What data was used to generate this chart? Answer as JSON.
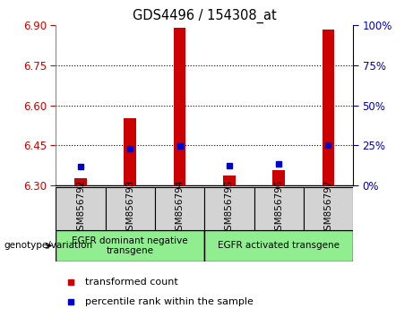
{
  "title": "GDS4496 / 154308_at",
  "samples": [
    "GSM856792",
    "GSM856793",
    "GSM856794",
    "GSM856795",
    "GSM856796",
    "GSM856797"
  ],
  "red_values": [
    6.328,
    6.553,
    6.89,
    6.337,
    6.358,
    6.883
  ],
  "blue_values": [
    6.372,
    6.437,
    6.449,
    6.373,
    6.382,
    6.451
  ],
  "y_min": 6.3,
  "y_max": 6.9,
  "y_ticks": [
    6.3,
    6.45,
    6.6,
    6.75,
    6.9
  ],
  "y2_ticks": [
    0,
    25,
    50,
    75,
    100
  ],
  "groups": [
    {
      "label": "EGFR dominant negative\ntransgene",
      "start": 0,
      "end": 3
    },
    {
      "label": "EGFR activated transgene",
      "start": 3,
      "end": 6
    }
  ],
  "red_color": "#CC0000",
  "blue_color": "#0000CC",
  "left_tick_color": "#CC0000",
  "right_tick_color": "#0000BB",
  "legend_red": "transformed count",
  "legend_blue": "percentile rank within the sample",
  "genotype_label": "genotype/variation",
  "green_color": "#90EE90",
  "gray_color": "#D3D3D3",
  "grid_color": "#000000"
}
